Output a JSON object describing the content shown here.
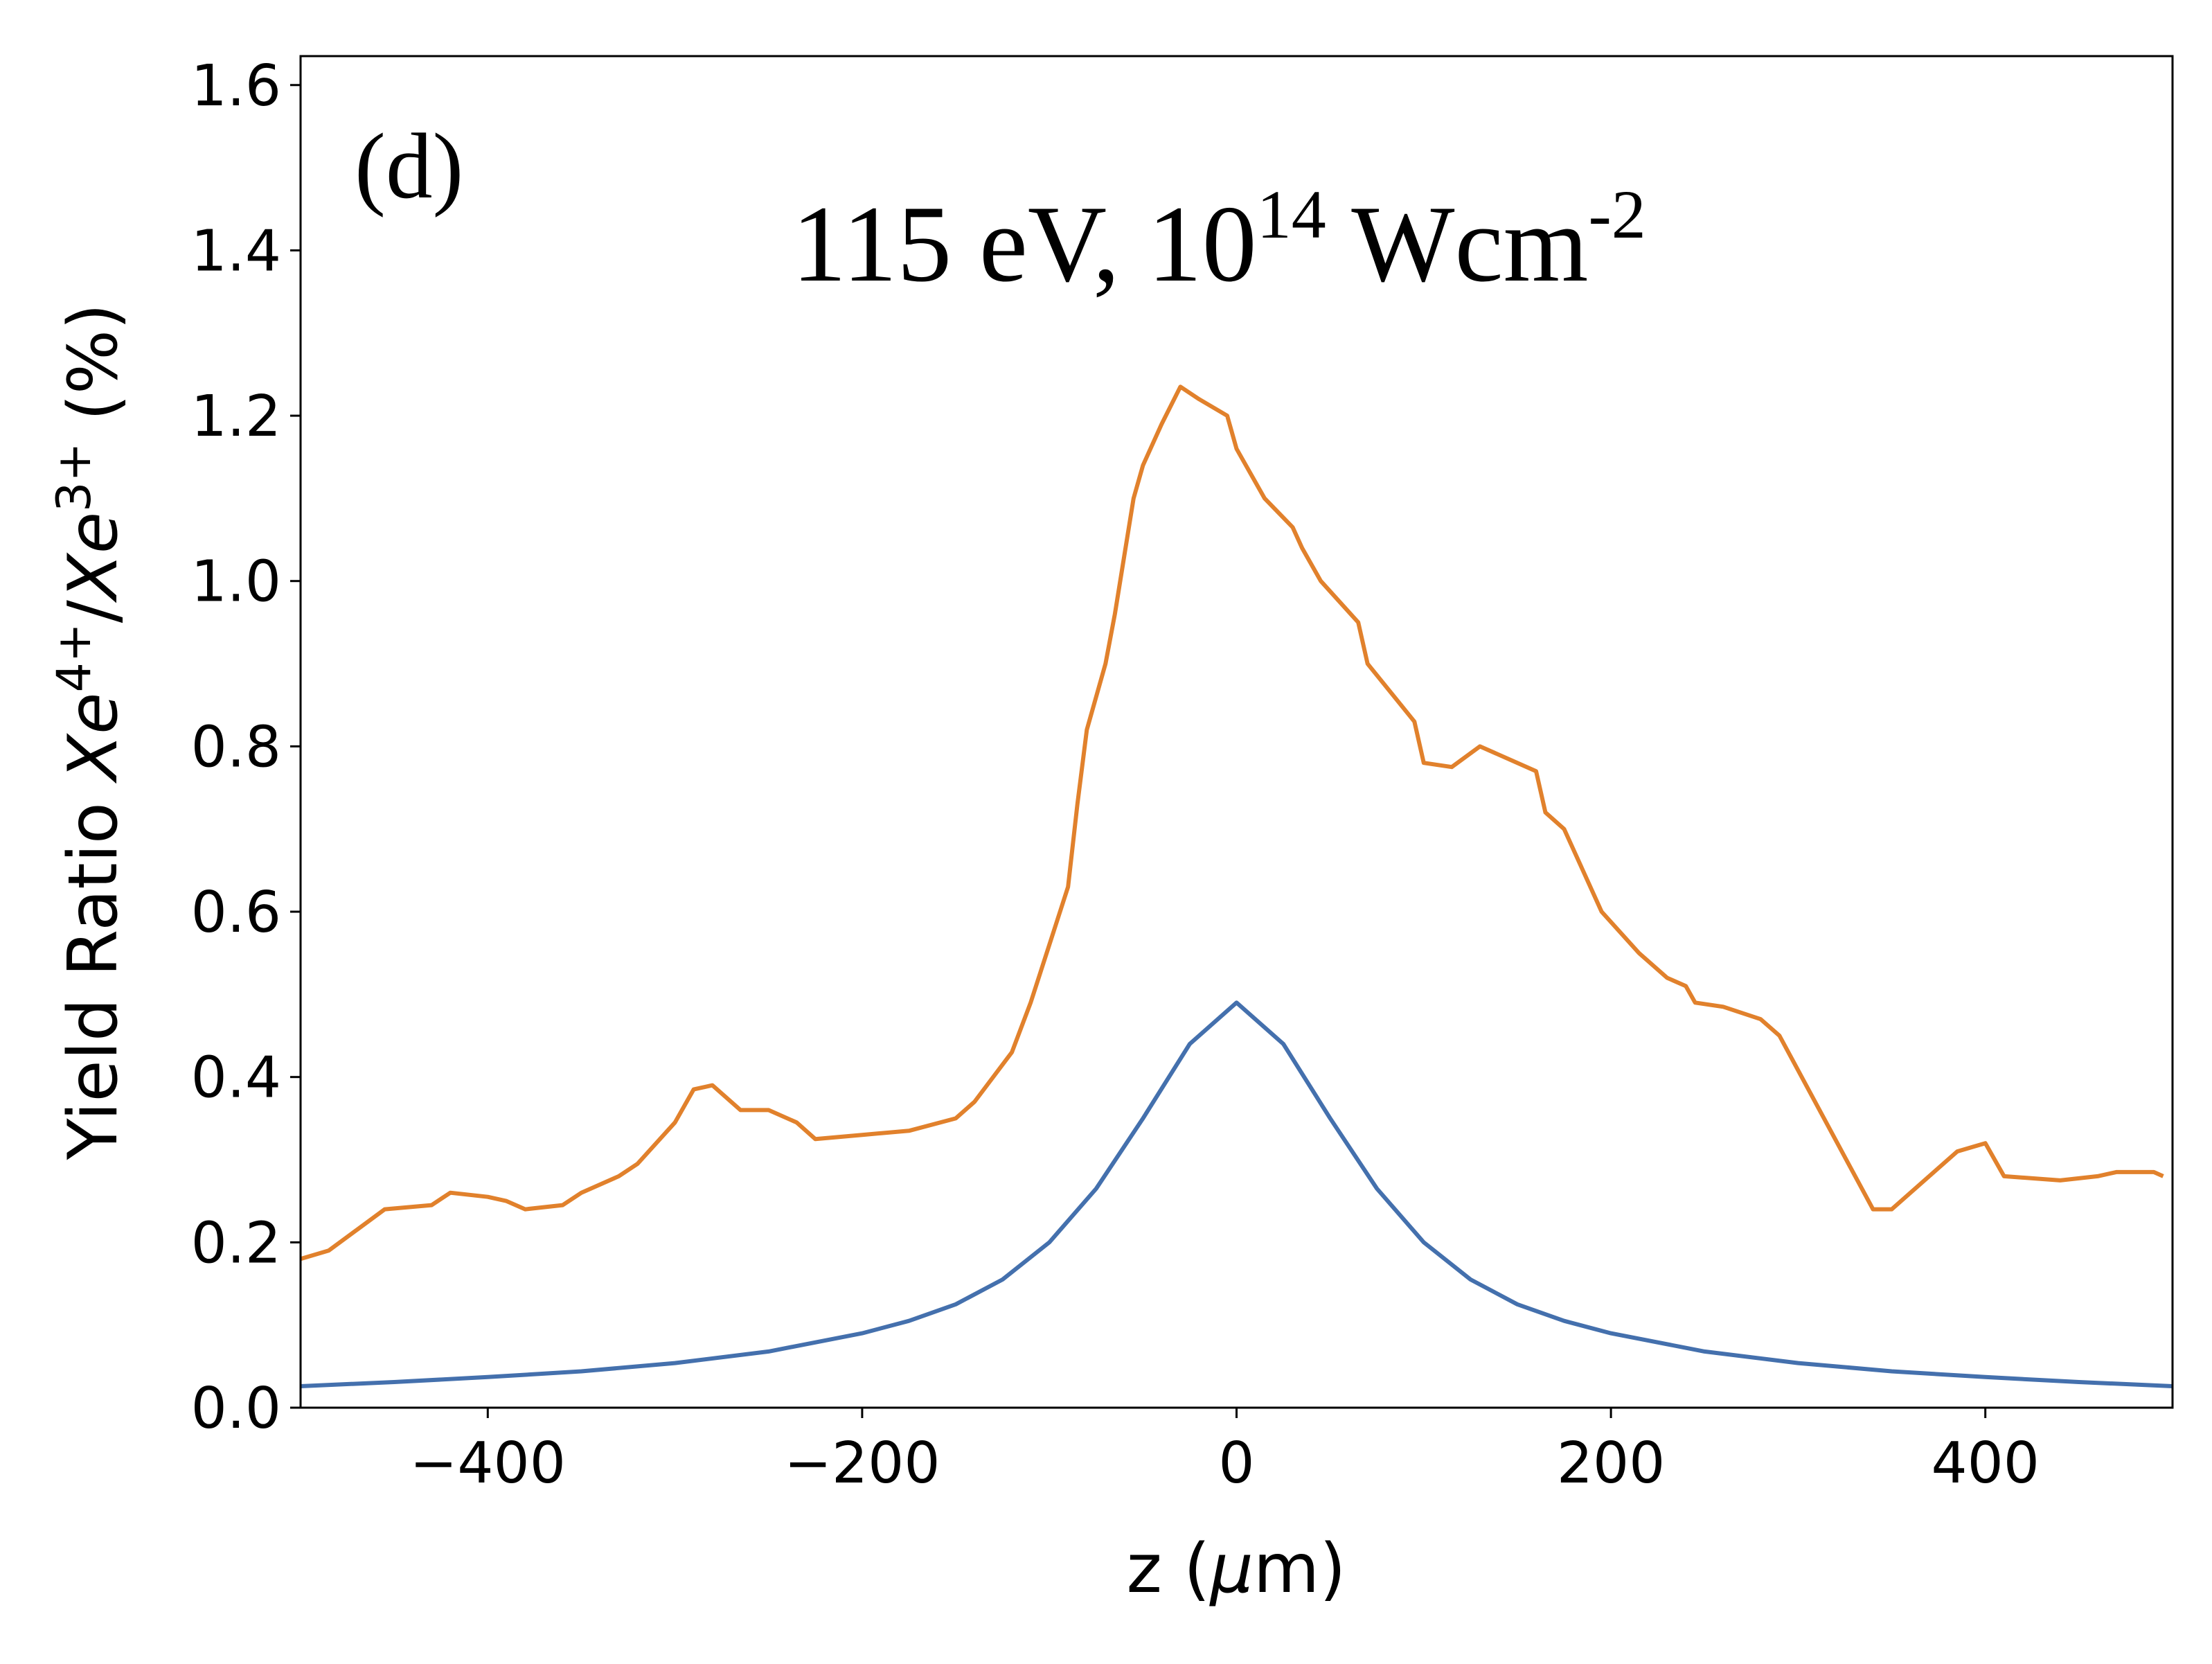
{
  "chart_data": {
    "type": "line",
    "panel_label": "(d)",
    "title": [
      "115 eV, 10",
      "14",
      " Wcm",
      "-2"
    ],
    "xlabel": [
      "z (",
      "μ",
      "m)"
    ],
    "ylabel": [
      "Yield Ratio ",
      "Xe",
      "4+",
      "/",
      "Xe",
      "3+",
      " (%)"
    ],
    "xlim": [
      -500,
      500
    ],
    "ylim": [
      0,
      1.635
    ],
    "xticks": [
      {
        "value": -400,
        "label": "−400"
      },
      {
        "value": -200,
        "label": "−200"
      },
      0,
      200,
      400
    ],
    "yticks": [
      {
        "value": 0,
        "label": "0.0"
      },
      0.2,
      0.4,
      0.6,
      0.8,
      {
        "value": 1,
        "label": "1.0"
      },
      1.2,
      1.4,
      1.6
    ],
    "grid": false,
    "series": [
      {
        "color": "#e1812c",
        "x": [
          -500,
          -485,
          -470,
          -455,
          -430,
          -420,
          -400,
          -390,
          -380,
          -360,
          -350,
          -330,
          -320,
          -300,
          -290,
          -280,
          -265,
          -250,
          -235,
          -225,
          -200,
          -175,
          -150,
          -140,
          -120,
          -110,
          -95,
          -90,
          -85,
          -80,
          -70,
          -65,
          -60,
          -55,
          -50,
          -40,
          -30,
          -20,
          -5,
          0,
          15,
          30,
          35,
          45,
          65,
          70,
          95,
          100,
          115,
          130,
          150,
          160,
          165,
          175,
          195,
          215,
          230,
          240,
          245,
          260,
          280,
          290,
          340,
          350,
          385,
          400,
          410,
          440,
          460,
          470,
          490,
          495
        ],
        "values": [
          0.18,
          0.19,
          0.215,
          0.24,
          0.245,
          0.26,
          0.255,
          0.25,
          0.24,
          0.245,
          0.26,
          0.28,
          0.295,
          0.345,
          0.385,
          0.39,
          0.36,
          0.36,
          0.345,
          0.325,
          0.33,
          0.335,
          0.35,
          0.37,
          0.43,
          0.49,
          0.595,
          0.63,
          0.73,
          0.82,
          0.9,
          0.96,
          1.03,
          1.1,
          1.14,
          1.19,
          1.235,
          1.22,
          1.2,
          1.16,
          1.1,
          1.065,
          1.04,
          1.0,
          0.95,
          0.9,
          0.83,
          0.78,
          0.775,
          0.8,
          0.78,
          0.77,
          0.72,
          0.7,
          0.6,
          0.55,
          0.52,
          0.51,
          0.49,
          0.485,
          0.47,
          0.45,
          0.24,
          0.24,
          0.31,
          0.32,
          0.28,
          0.275,
          0.28,
          0.285,
          0.285,
          0.28
        ]
      },
      {
        "color": "#4470ad",
        "x": [
          -500,
          -450,
          -400,
          -350,
          -300,
          -250,
          -200,
          -175,
          -150,
          -125,
          -100,
          -75,
          -50,
          -25,
          0,
          25,
          50,
          75,
          100,
          125,
          150,
          175,
          200,
          250,
          300,
          350,
          400,
          450,
          500
        ],
        "values": [
          0.026,
          0.031,
          0.037,
          0.044,
          0.054,
          0.068,
          0.09,
          0.105,
          0.125,
          0.155,
          0.2,
          0.265,
          0.35,
          0.44,
          0.49,
          0.44,
          0.35,
          0.265,
          0.2,
          0.155,
          0.125,
          0.105,
          0.09,
          0.068,
          0.054,
          0.044,
          0.037,
          0.031,
          0.026
        ]
      }
    ]
  }
}
